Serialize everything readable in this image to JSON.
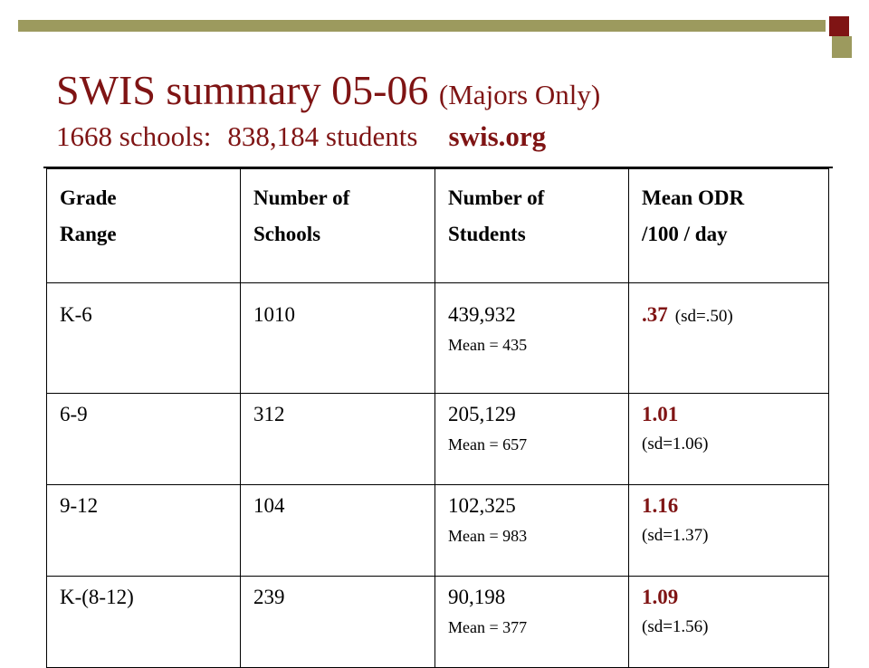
{
  "title": {
    "main": "SWIS summary 05-06",
    "qualifier": "(Majors Only)",
    "schools": "1668 schools:",
    "students": "838,184 students",
    "site": "swis.org"
  },
  "colors": {
    "accent": "#7f1414",
    "olive": "#9c9a5e"
  },
  "table": {
    "headers": [
      [
        "Grade",
        "Range"
      ],
      [
        "Number of",
        "Schools"
      ],
      [
        "Number of",
        "Students"
      ],
      [
        "Mean ODR",
        "/100 / day"
      ]
    ],
    "rows": [
      {
        "grade": "K-6",
        "schools": "1010",
        "students": "439,932",
        "mean": "Mean = 435",
        "odr": ".37",
        "sd": "(sd=.50)"
      },
      {
        "grade": "6-9",
        "schools": "312",
        "students": "205,129",
        "mean": "Mean = 657",
        "odr": "1.01",
        "sd": "(sd=1.06)"
      },
      {
        "grade": "9-12",
        "schools": "104",
        "students": "102,325",
        "mean": "Mean = 983",
        "odr": "1.16",
        "sd": "(sd=1.37)"
      },
      {
        "grade": "K-(8-12)",
        "schools": "239",
        "students": "90,198",
        "mean": "Mean = 377",
        "odr": "1.09",
        "sd": "(sd=1.56)"
      }
    ]
  }
}
